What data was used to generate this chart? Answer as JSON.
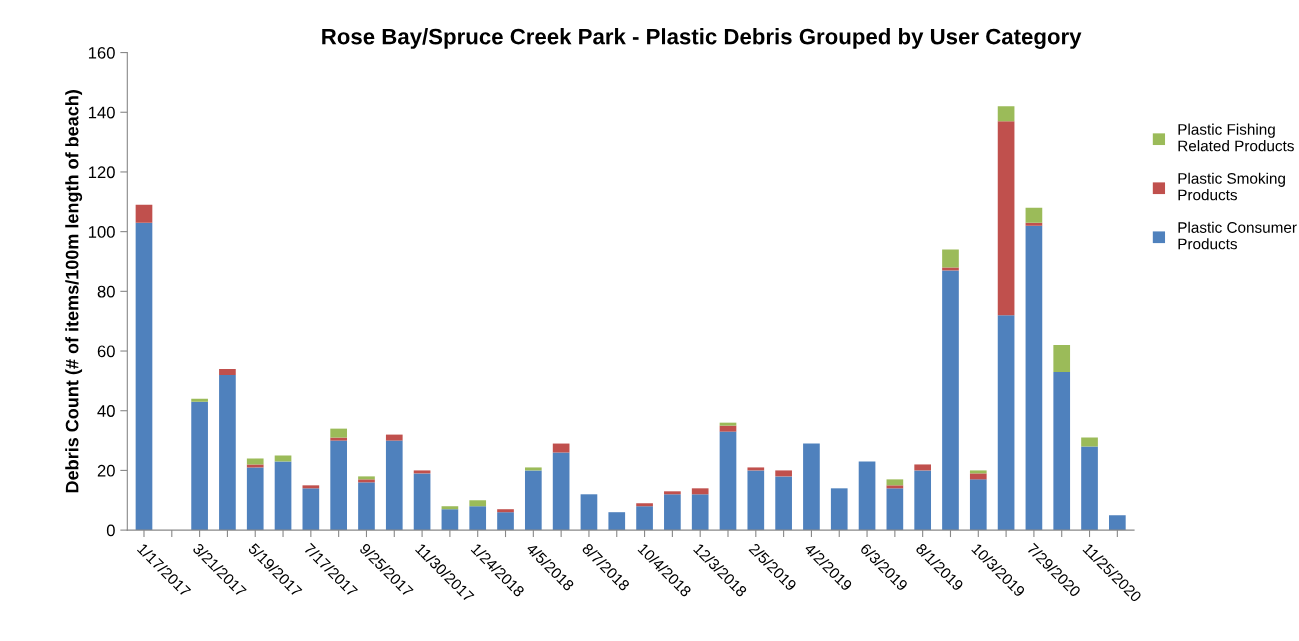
{
  "chart_data": {
    "type": "bar",
    "stacked": true,
    "title": "Rose Bay/Spruce Creek Park - Plastic Debris Grouped by User Category",
    "ylabel": "Debris Count (# of items/100m length of beach)",
    "categories": [
      "1/17/2017",
      null,
      "3/21/2017",
      null,
      "5/19/2017",
      null,
      "7/17/2017",
      null,
      "9/25/2017",
      null,
      "11/30/2017",
      null,
      "1/24/2018",
      null,
      "4/5/2018",
      null,
      "8/7/2018",
      null,
      "10/4/2018",
      null,
      "12/3/2018",
      null,
      "2/5/2019",
      null,
      "4/2/2019",
      null,
      "6/3/2019",
      null,
      "8/1/2019",
      null,
      "10/3/2019",
      null,
      "7/29/2020",
      null,
      "11/25/2020",
      null
    ],
    "series": [
      {
        "name": "Plastic Consumer Products",
        "color": "#4f81bd",
        "values": [
          103,
          0,
          43,
          52,
          21,
          23,
          14,
          30,
          16,
          30,
          19,
          7,
          8,
          6,
          20,
          26,
          12,
          6,
          8,
          12,
          12,
          33,
          20,
          18,
          29,
          14,
          23,
          14,
          20,
          87,
          17,
          72,
          102,
          53,
          28,
          5
        ]
      },
      {
        "name": "Plastic Smoking Products",
        "color": "#c0504d",
        "values": [
          6,
          0,
          0,
          2,
          1,
          0,
          1,
          1,
          1,
          2,
          1,
          0,
          0,
          1,
          0,
          3,
          0,
          0,
          1,
          1,
          2,
          2,
          1,
          2,
          0,
          0,
          0,
          1,
          2,
          1,
          2,
          65,
          1,
          0,
          0,
          0
        ]
      },
      {
        "name": "Plastic Fishing Related Products",
        "color": "#9bbb59",
        "values": [
          0,
          0,
          1,
          0,
          2,
          2,
          0,
          3,
          1,
          0,
          0,
          1,
          2,
          0,
          1,
          0,
          0,
          0,
          0,
          0,
          0,
          1,
          0,
          0,
          0,
          0,
          0,
          2,
          0,
          6,
          1,
          5,
          5,
          9,
          3,
          0
        ]
      }
    ],
    "ylim": [
      0,
      160
    ],
    "yticks": [
      0,
      20,
      40,
      60,
      80,
      100,
      120,
      140,
      160
    ],
    "grid": false,
    "legend": "right"
  }
}
